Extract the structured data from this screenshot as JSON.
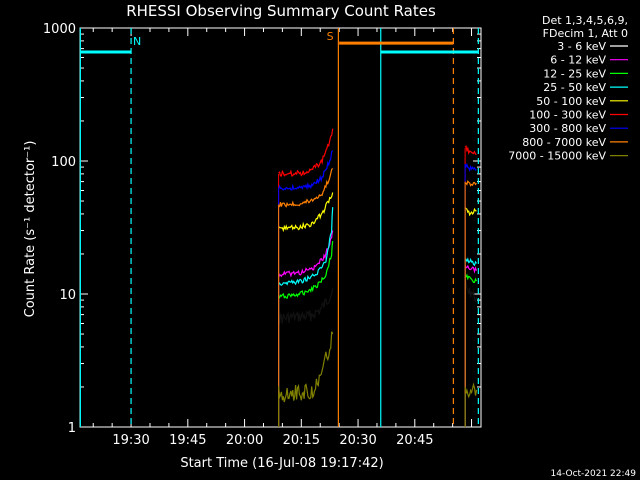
{
  "chart_data": {
    "type": "line",
    "title": "RHESSI Observing Summary Count Rates",
    "xlabel": "Start Time (16-Jul-08 19:17:42)",
    "ylabel": "Count Rate (s⁻¹ detector⁻¹)",
    "yscale": "log",
    "ylim": [
      1,
      1000
    ],
    "xlim_minutes": [
      19.5,
      125.5
    ],
    "x_ticks": [
      {
        "label": "19:30",
        "min": 33
      },
      {
        "label": "19:45",
        "min": 48
      },
      {
        "label": "20:00",
        "min": 63
      },
      {
        "label": "20:15",
        "min": 78
      },
      {
        "label": "20:30",
        "min": 93
      },
      {
        "label": "20:45",
        "min": 108
      }
    ],
    "y_ticks": [
      {
        "label": "1",
        "value": 1
      },
      {
        "label": "10",
        "value": 10
      },
      {
        "label": "100",
        "value": 100
      },
      {
        "label": "1000",
        "value": 1000
      }
    ],
    "legend_header": [
      "Det 1,3,4,5,6,9,",
      "FDecim 1, Att 0"
    ],
    "series": [
      {
        "name": "3 - 6 keV",
        "color": "#000000",
        "seg1": [
          [
            72,
            6.5
          ],
          [
            80,
            6.8
          ],
          [
            83,
            7.5
          ],
          [
            85,
            9
          ],
          [
            86.3,
            11
          ]
        ],
        "seg2": [
          [
            121.3,
            14
          ],
          [
            122,
            11
          ],
          [
            123,
            10
          ],
          [
            124.3,
            9.5
          ]
        ]
      },
      {
        "name": "6 - 12 keV",
        "color": "#ff00ff",
        "seg1": [
          [
            72,
            14
          ],
          [
            78,
            14.5
          ],
          [
            82,
            16
          ],
          [
            84.5,
            20
          ],
          [
            86,
            27
          ],
          [
            86.3,
            30
          ]
        ],
        "seg2": [
          [
            121.3,
            16
          ],
          [
            122.5,
            15.5
          ],
          [
            124.3,
            15
          ]
        ]
      },
      {
        "name": "12 - 25 keV",
        "color": "#00ff00",
        "seg1": [
          [
            72,
            9.5
          ],
          [
            78,
            10
          ],
          [
            82,
            11.5
          ],
          [
            84.5,
            14
          ],
          [
            86,
            20
          ],
          [
            86.3,
            25
          ]
        ],
        "seg2": [
          [
            121.3,
            13.5
          ],
          [
            122.5,
            13
          ],
          [
            124.3,
            12.5
          ]
        ]
      },
      {
        "name": "25 - 50 keV",
        "color": "#00ffff",
        "seg1": [
          [
            72,
            12
          ],
          [
            78,
            12.5
          ],
          [
            82,
            14
          ],
          [
            84.5,
            18
          ],
          [
            86,
            30
          ],
          [
            86.3,
            45
          ]
        ],
        "seg2": [
          [
            121.3,
            18
          ],
          [
            122.5,
            17.5
          ],
          [
            124.3,
            17
          ]
        ]
      },
      {
        "name": "50 - 100 keV",
        "color": "#ffff00",
        "seg1": [
          [
            72,
            31
          ],
          [
            78,
            32
          ],
          [
            81,
            34
          ],
          [
            83.5,
            40
          ],
          [
            85.5,
            52
          ],
          [
            86.3,
            58
          ]
        ],
        "seg2": [
          [
            121.3,
            43
          ],
          [
            122.5,
            41
          ],
          [
            124.3,
            42
          ]
        ]
      },
      {
        "name": "100 - 300 keV",
        "color": "#ff0000",
        "seg1": [
          [
            72,
            80
          ],
          [
            78,
            81
          ],
          [
            81,
            86
          ],
          [
            83.5,
            100
          ],
          [
            85.5,
            140
          ],
          [
            86.3,
            175
          ]
        ],
        "seg2": [
          [
            121.3,
            125
          ],
          [
            122.5,
            118
          ],
          [
            124.3,
            112
          ]
        ]
      },
      {
        "name": "300 - 800 keV",
        "color": "#0000ff",
        "seg1": [
          [
            72,
            62
          ],
          [
            78,
            63
          ],
          [
            81,
            66
          ],
          [
            83.5,
            75
          ],
          [
            85.5,
            100
          ],
          [
            86.3,
            120
          ]
        ],
        "seg2": [
          [
            121.3,
            95
          ],
          [
            122.5,
            88
          ],
          [
            124.3,
            86
          ]
        ]
      },
      {
        "name": "800 - 7000 keV",
        "color": "#ff8000",
        "seg1": [
          [
            72,
            47
          ],
          [
            78,
            48
          ],
          [
            81,
            51
          ],
          [
            83.5,
            57
          ],
          [
            85.5,
            75
          ],
          [
            86.3,
            88
          ]
        ],
        "seg2": [
          [
            121.3,
            70
          ],
          [
            122.5,
            67
          ],
          [
            124.3,
            68
          ]
        ]
      },
      {
        "name": "7000 - 15000 keV",
        "color": "#808000",
        "seg1": [
          [
            72,
            1.8
          ],
          [
            78,
            1.8
          ],
          [
            81,
            1.9
          ],
          [
            83,
            2.3
          ],
          [
            85,
            3.5
          ],
          [
            86.3,
            5
          ]
        ],
        "seg2": [
          [
            121.3,
            1.8
          ],
          [
            122.5,
            1.9
          ],
          [
            124.3,
            1.9
          ]
        ]
      }
    ],
    "annotations": [
      {
        "text": "N",
        "color": "#00ffff",
        "min": 34.6,
        "value": 800
      },
      {
        "text": "S",
        "color": "#ff8000",
        "min": 85.6,
        "value": 870
      }
    ],
    "state_bars": [
      {
        "color": "#00ffff",
        "from": 19.5,
        "to": 33,
        "value": 660
      },
      {
        "color": "#ff8000",
        "from": 88,
        "to": 118.2,
        "value": 770
      },
      {
        "color": "#00ffff",
        "from": 99,
        "to": 124.8,
        "value": 660
      }
    ],
    "vlines": [
      {
        "color": "#00ffff",
        "min": 19.6,
        "dashed": false
      },
      {
        "color": "#00ffff",
        "min": 33,
        "dashed": true
      },
      {
        "color": "#ff8000",
        "min": 87.8,
        "dashed": false
      },
      {
        "color": "#00ffff",
        "min": 99,
        "dashed": false
      },
      {
        "color": "#ff8000",
        "min": 118.2,
        "dashed": true
      },
      {
        "color": "#00ffff",
        "min": 124.8,
        "dashed": true
      }
    ]
  },
  "timestamp": "14-Oct-2021 22:49"
}
